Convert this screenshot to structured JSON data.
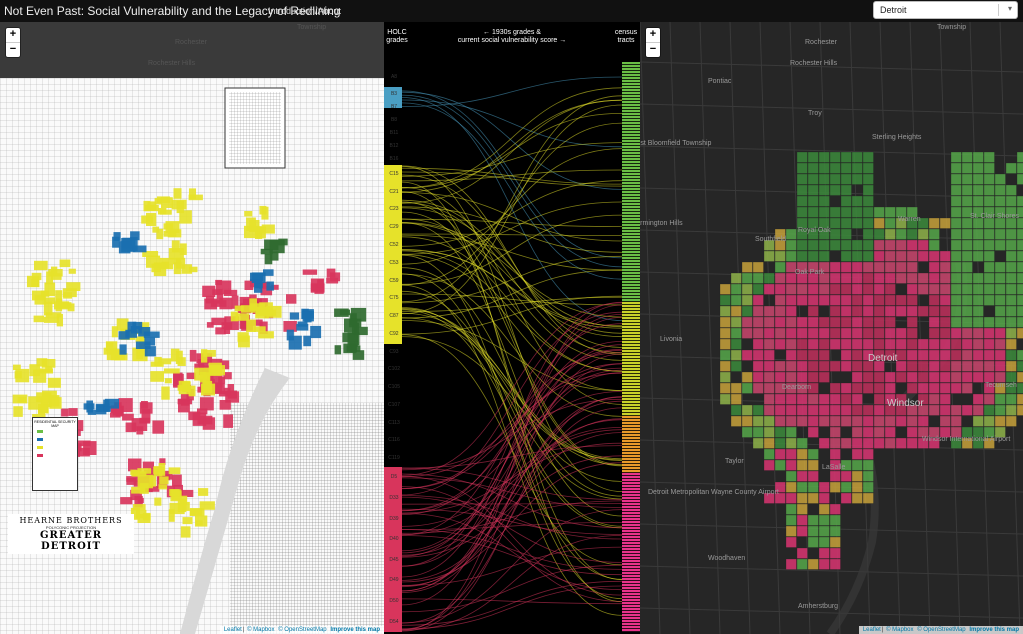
{
  "header": {
    "title": "Not Even Past: Social Vulnerability and the Legacy of Redlining",
    "intro_link": "Introduction/About",
    "city_select_value": "Detroit"
  },
  "zoom": {
    "in": "+",
    "out": "−"
  },
  "left_map": {
    "place_labels": [
      "Township",
      "Rochester",
      "Rochester Hills"
    ],
    "scan_title_top": "HEARNE BROTHERS",
    "scan_title_mid": "POLYCONIC PROJECTION",
    "scan_title_main": "GREATER DETROIT",
    "legend_title": "RESIDENTIAL SECURITY MAP",
    "attribution": {
      "leaflet": "Leaflet",
      "mapbox": "© Mapbox",
      "osm": "© OpenStreetMap",
      "improve": "Improve this map"
    }
  },
  "middle": {
    "holc_header": [
      "HOLC",
      "grades"
    ],
    "center_header": [
      "← 1930s grades &",
      "current social vulnerability score →"
    ],
    "census_header": [
      "census",
      "tracts"
    ],
    "grade_labels": {
      "A": [
        "A8"
      ],
      "B": [
        "B3",
        "B7",
        "B8",
        "B11",
        "B12",
        "B16"
      ],
      "C": [
        "C15",
        "C21",
        "C23",
        "C29",
        "C52",
        "C53",
        "C59",
        "C75",
        "C87",
        "C92",
        "C93",
        "C102",
        "C105",
        "C107",
        "C113",
        "C116",
        "C119"
      ],
      "D": [
        "D5",
        "D33",
        "D39",
        "D40",
        "D45",
        "D49",
        "D50",
        "D54"
      ]
    }
  },
  "right_map": {
    "place_labels": [
      "Township",
      "Rochester",
      "Rochester Hills",
      "Pontiac",
      "Troy",
      "Sterling Heights",
      "Royal Oak",
      "Warren",
      "Southfield",
      "Oak Park",
      "St. Clair Shores",
      "Livonia",
      "Detroit",
      "Dearborn",
      "Windsor",
      "Tecumseh",
      "Taylor",
      "Windsor International Airport",
      "Detroit Metropolitan Wayne County Airport",
      "LaSalle",
      "Amherstburg",
      "Woodhaven",
      "Farmington Hills",
      "West Bloomfield Township"
    ],
    "attribution": {
      "leaflet": "Leaflet",
      "mapbox": "© Mapbox",
      "osm": "© OpenStreetMap",
      "improve": "Improve this map"
    }
  },
  "colors": {
    "A": "#6abf45",
    "B": "#4a9fc4",
    "C": "#e6e22a",
    "D": "#d8355c",
    "bg": "#000000",
    "right_bg": "#262626"
  }
}
